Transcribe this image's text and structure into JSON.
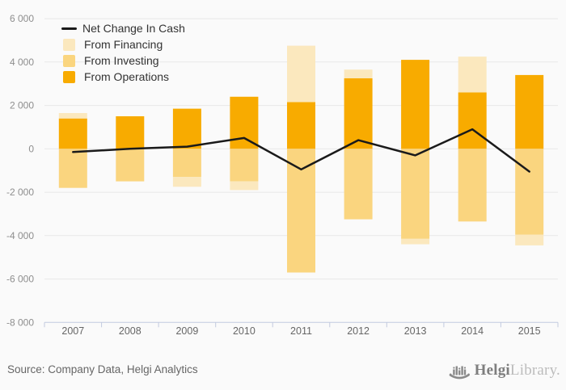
{
  "page": {
    "background": "#FAFAFA"
  },
  "chart_data": {
    "type": "bar",
    "stacked": true,
    "title": "",
    "xlabel": "",
    "ylabel": "",
    "grid": true,
    "legend_position": "top-left",
    "categories": [
      "2007",
      "2008",
      "2009",
      "2010",
      "2011",
      "2012",
      "2013",
      "2014",
      "2015"
    ],
    "series": [
      {
        "name": "Net Change In Cash",
        "type": "line",
        "color": "#1A1A1A",
        "values": [
          -150,
          0,
          100,
          500,
          -950,
          400,
          -300,
          900,
          -1050
        ]
      },
      {
        "name": "From Financing",
        "type": "bar",
        "color": "#FBE8BE",
        "values": [
          250,
          0,
          -450,
          -400,
          2600,
          400,
          -250,
          1650,
          -500
        ]
      },
      {
        "name": "From Investing",
        "type": "bar",
        "color": "#FAD57F",
        "values": [
          -1800,
          -1500,
          -1300,
          -1500,
          -5700,
          -3250,
          -4150,
          -3350,
          -3950
        ]
      },
      {
        "name": "From Operations",
        "type": "bar",
        "color": "#F8AB00",
        "values": [
          1400,
          1500,
          1850,
          2400,
          2150,
          3250,
          4100,
          2600,
          3400
        ]
      }
    ],
    "y_axis": {
      "min": -8000,
      "max": 6000,
      "tick_interval": 2000,
      "tick_values": [
        6000,
        4000,
        2000,
        0,
        -2000,
        -4000,
        -6000,
        -8000
      ],
      "tick_labels": [
        "6 000",
        "4 000",
        "2 000",
        "0",
        "-2 000",
        "-4 000",
        "-6 000",
        "-8 000"
      ]
    },
    "palette": {
      "gridline": "#E7E7E7",
      "axis_line": "#C2CADF",
      "y_label_color": "#8E8E8E",
      "x_label_color": "#666666",
      "line_color": "#1A1A1A"
    }
  },
  "footer": {
    "source_text": "Source: Company Data, Helgi Analytics",
    "logo": {
      "icon": "bar-chart-ship-icon",
      "brand_bold": "Helgi",
      "brand_light": "Library."
    }
  }
}
